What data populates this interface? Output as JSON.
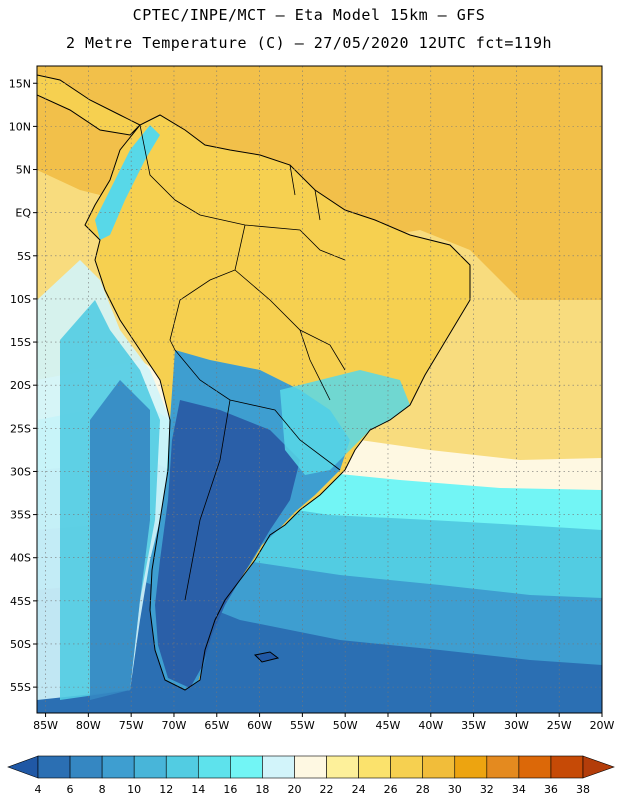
{
  "header": {
    "line1": "CPTEC/INPE/MCT –  Eta Model 15km – GFS",
    "line2": "2 Metre Temperature (C) – 27/05/2020 12UTC fct=119h"
  },
  "map": {
    "lat_range": [
      -58,
      17
    ],
    "lon_range": [
      -86,
      -20
    ],
    "lat_ticks": [
      "15N",
      "10N",
      "5N",
      "EQ",
      "5S",
      "10S",
      "15S",
      "20S",
      "25S",
      "30S",
      "35S",
      "40S",
      "45S",
      "50S",
      "55S"
    ],
    "lat_values": [
      15,
      10,
      5,
      0,
      -5,
      -10,
      -15,
      -20,
      -25,
      -30,
      -35,
      -40,
      -45,
      -50,
      -55
    ],
    "lon_ticks": [
      "85W",
      "80W",
      "75W",
      "70W",
      "65W",
      "60W",
      "55W",
      "50W",
      "45W",
      "40W",
      "35W",
      "30W",
      "25W",
      "20W"
    ],
    "lon_values": [
      -85,
      -80,
      -75,
      -70,
      -65,
      -60,
      -55,
      -50,
      -45,
      -40,
      -35,
      -30,
      -25,
      -20
    ]
  },
  "colorbar": {
    "labels": [
      "4",
      "6",
      "8",
      "10",
      "12",
      "14",
      "16",
      "18",
      "20",
      "22",
      "24",
      "26",
      "28",
      "30",
      "32",
      "34",
      "36",
      "38"
    ],
    "colors": [
      "#2058a5",
      "#2b6fb3",
      "#3587c2",
      "#3e9ed0",
      "#48b5d9",
      "#52cce2",
      "#5ee2ec",
      "#72f5f5",
      "#d2f4fa",
      "#fef8e2",
      "#fdf09a",
      "#fbe26c",
      "#f6d050",
      "#f1bd3a",
      "#eda410",
      "#e48a1f",
      "#dc6808",
      "#c64a06",
      "#b33d0a"
    ]
  },
  "legend_colors": {
    "deep_cold": "#2a5fa8",
    "cold": "#3a8fcb",
    "cool": "#58d8e8",
    "mild": "#d2f4fa",
    "warm": "#f8dc7e",
    "hot": "#f2c04a"
  }
}
